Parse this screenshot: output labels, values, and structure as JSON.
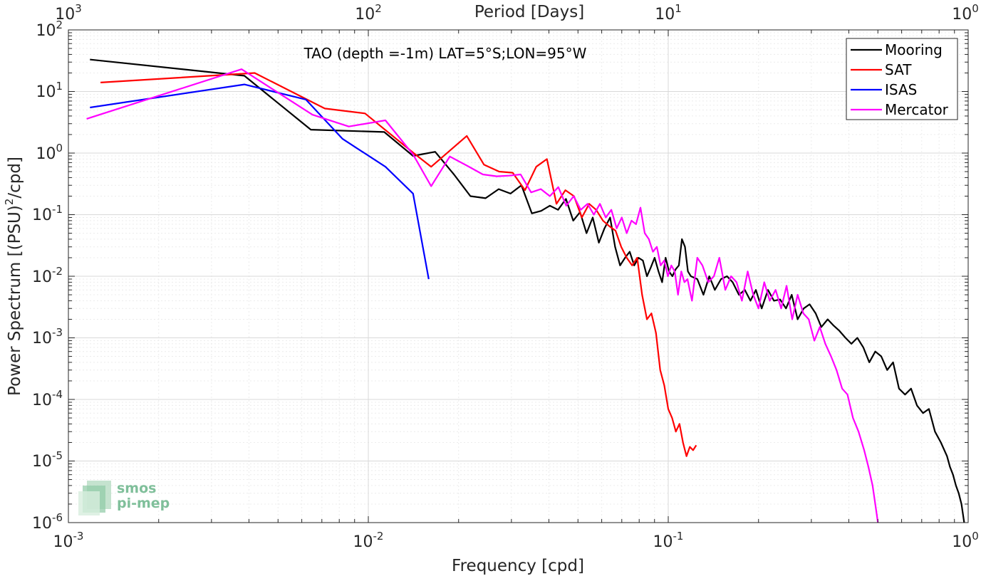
{
  "chart_data": {
    "type": "line",
    "title": "TAO (depth =-1m) LAT=5°S;LON=95°W",
    "xlabel": "Frequency [cpd]",
    "ylabel_base": "Power Spectrum [(PSU)",
    "ylabel_sup": "2",
    "ylabel_tail": "/cpd]",
    "x2label": "Period [Days]",
    "xscale": "log",
    "yscale": "log",
    "xlim": [
      0.001,
      1
    ],
    "ylim": [
      1e-06,
      100
    ],
    "grid": true,
    "legend_position": "top-right",
    "x_ticks": [
      {
        "base": "10",
        "exp": "-3"
      },
      {
        "base": "10",
        "exp": "-2"
      },
      {
        "base": "10",
        "exp": "-1"
      },
      {
        "base": "10",
        "exp": "0"
      }
    ],
    "x2_ticks": [
      {
        "base": "10",
        "exp": "3"
      },
      {
        "base": "10",
        "exp": "2"
      },
      {
        "base": "10",
        "exp": "1"
      },
      {
        "base": "10",
        "exp": "0"
      }
    ],
    "y_ticks": [
      {
        "base": "10",
        "exp": "2"
      },
      {
        "base": "10",
        "exp": "1"
      },
      {
        "base": "10",
        "exp": "0"
      },
      {
        "base": "10",
        "exp": "-1"
      },
      {
        "base": "10",
        "exp": "-2"
      },
      {
        "base": "10",
        "exp": "-3"
      },
      {
        "base": "10",
        "exp": "-4"
      },
      {
        "base": "10",
        "exp": "-5"
      },
      {
        "base": "10",
        "exp": "-6"
      }
    ],
    "series": [
      {
        "name": "Mooring",
        "color": "#000000",
        "x": [
          0.00118,
          0.00386,
          0.00643,
          0.0113,
          0.0141,
          0.0167,
          0.0193,
          0.0219,
          0.0246,
          0.0272,
          0.0298,
          0.0324,
          0.0351,
          0.0377,
          0.0403,
          0.0429,
          0.0456,
          0.0482,
          0.0508,
          0.0534,
          0.056,
          0.0587,
          0.0613,
          0.064,
          0.0665,
          0.0691,
          0.0718,
          0.0744,
          0.077,
          0.0796,
          0.0823,
          0.0849,
          0.0875,
          0.0901,
          0.0928,
          0.0954,
          0.098,
          0.1006,
          0.1032,
          0.1059,
          0.1085,
          0.1111,
          0.1137,
          0.1163,
          0.119,
          0.125,
          0.131,
          0.137,
          0.143,
          0.15,
          0.157,
          0.164,
          0.172,
          0.18,
          0.188,
          0.196,
          0.205,
          0.215,
          0.225,
          0.236,
          0.247,
          0.258,
          0.27,
          0.283,
          0.296,
          0.31,
          0.324,
          0.34,
          0.355,
          0.372,
          0.39,
          0.408,
          0.427,
          0.447,
          0.468,
          0.49,
          0.513,
          0.537,
          0.562,
          0.588,
          0.616,
          0.645,
          0.675,
          0.707,
          0.74,
          0.775,
          0.811,
          0.85,
          0.87,
          0.89,
          0.91,
          0.93,
          0.95,
          0.97
        ],
        "y": [
          33,
          18,
          2.4,
          2.2,
          0.9,
          1.05,
          0.45,
          0.2,
          0.185,
          0.26,
          0.22,
          0.3,
          0.105,
          0.115,
          0.14,
          0.12,
          0.18,
          0.08,
          0.11,
          0.05,
          0.09,
          0.035,
          0.06,
          0.09,
          0.03,
          0.015,
          0.02,
          0.025,
          0.015,
          0.02,
          0.018,
          0.01,
          0.014,
          0.02,
          0.012,
          0.008,
          0.02,
          0.012,
          0.01,
          0.013,
          0.015,
          0.04,
          0.03,
          0.012,
          0.01,
          0.009,
          0.005,
          0.01,
          0.006,
          0.009,
          0.01,
          0.008,
          0.005,
          0.006,
          0.004,
          0.006,
          0.003,
          0.006,
          0.004,
          0.0042,
          0.003,
          0.005,
          0.002,
          0.003,
          0.0035,
          0.0025,
          0.0015,
          0.002,
          0.0016,
          0.0013,
          0.001,
          0.0008,
          0.001,
          0.0007,
          0.0004,
          0.0006,
          0.0005,
          0.0003,
          0.0004,
          0.00015,
          0.00012,
          0.00015,
          8e-05,
          6e-05,
          7e-05,
          3e-05,
          2e-05,
          1.2e-05,
          8e-06,
          6e-06,
          4e-06,
          3e-06,
          2e-06,
          1e-06
        ]
      },
      {
        "name": "SAT",
        "color": "#ff0000",
        "x": [
          0.00128,
          0.00418,
          0.00716,
          0.00975,
          0.0142,
          0.0162,
          0.0182,
          0.0213,
          0.0243,
          0.0273,
          0.0303,
          0.0333,
          0.0363,
          0.0394,
          0.0424,
          0.0454,
          0.0485,
          0.0515,
          0.0545,
          0.0575,
          0.0606,
          0.0636,
          0.0667,
          0.0697,
          0.0727,
          0.0758,
          0.0788,
          0.0818,
          0.0849,
          0.0879,
          0.091,
          0.094,
          0.097,
          0.1,
          0.103,
          0.106,
          0.109,
          0.112,
          0.115,
          0.118,
          0.121,
          0.124
        ],
        "y": [
          14,
          20,
          5.3,
          4.4,
          0.99,
          0.6,
          0.98,
          1.9,
          0.65,
          0.5,
          0.48,
          0.25,
          0.6,
          0.8,
          0.15,
          0.25,
          0.2,
          0.09,
          0.15,
          0.12,
          0.08,
          0.065,
          0.055,
          0.03,
          0.02,
          0.015,
          0.02,
          0.005,
          0.002,
          0.0025,
          0.0012,
          0.0003,
          0.00017,
          7e-05,
          5e-05,
          3e-05,
          4e-05,
          2e-05,
          1.2e-05,
          1.7e-05,
          1.5e-05,
          1.8e-05
        ]
      },
      {
        "name": "ISAS",
        "color": "#0000ff",
        "x": [
          0.00118,
          0.00386,
          0.00619,
          0.00821,
          0.0114,
          0.0141,
          0.0159
        ],
        "y": [
          5.5,
          13,
          7.4,
          1.7,
          0.6,
          0.22,
          0.009
        ]
      },
      {
        "name": "Mercator",
        "color": "#ff00ff",
        "x": [
          0.00115,
          0.00378,
          0.00651,
          0.00861,
          0.0114,
          0.0141,
          0.0162,
          0.0187,
          0.0214,
          0.0241,
          0.0268,
          0.0295,
          0.0322,
          0.0349,
          0.0376,
          0.0403,
          0.043,
          0.0457,
          0.0484,
          0.0511,
          0.0538,
          0.0565,
          0.0592,
          0.0619,
          0.0646,
          0.0673,
          0.07,
          0.0727,
          0.0754,
          0.0781,
          0.0808,
          0.0835,
          0.0862,
          0.0889,
          0.0916,
          0.0943,
          0.097,
          0.0997,
          0.1024,
          0.1051,
          0.1078,
          0.1105,
          0.1132,
          0.1159,
          0.12,
          0.125,
          0.13,
          0.136,
          0.142,
          0.148,
          0.155,
          0.162,
          0.169,
          0.176,
          0.184,
          0.192,
          0.2,
          0.209,
          0.218,
          0.228,
          0.238,
          0.248,
          0.259,
          0.27,
          0.282,
          0.294,
          0.307,
          0.32,
          0.334,
          0.349,
          0.364,
          0.38,
          0.396,
          0.413,
          0.431,
          0.45,
          0.465,
          0.48,
          0.49,
          0.5
        ],
        "y": [
          3.6,
          23,
          4.2,
          2.7,
          3.4,
          0.95,
          0.29,
          0.88,
          0.62,
          0.45,
          0.42,
          0.43,
          0.45,
          0.23,
          0.26,
          0.2,
          0.28,
          0.14,
          0.2,
          0.12,
          0.15,
          0.1,
          0.15,
          0.09,
          0.12,
          0.06,
          0.09,
          0.05,
          0.08,
          0.07,
          0.13,
          0.05,
          0.04,
          0.025,
          0.03,
          0.015,
          0.018,
          0.01,
          0.015,
          0.012,
          0.005,
          0.012,
          0.008,
          0.009,
          0.004,
          0.02,
          0.015,
          0.008,
          0.01,
          0.02,
          0.006,
          0.01,
          0.008,
          0.004,
          0.012,
          0.005,
          0.003,
          0.008,
          0.004,
          0.006,
          0.003,
          0.007,
          0.002,
          0.005,
          0.0025,
          0.002,
          0.0009,
          0.0015,
          0.0008,
          0.0005,
          0.0003,
          0.00015,
          0.00012,
          5e-05,
          3e-05,
          1.5e-05,
          8e-06,
          4e-06,
          2e-06,
          1e-06
        ]
      }
    ]
  },
  "logo": {
    "line1": "smos",
    "line2": "pi-mep"
  }
}
